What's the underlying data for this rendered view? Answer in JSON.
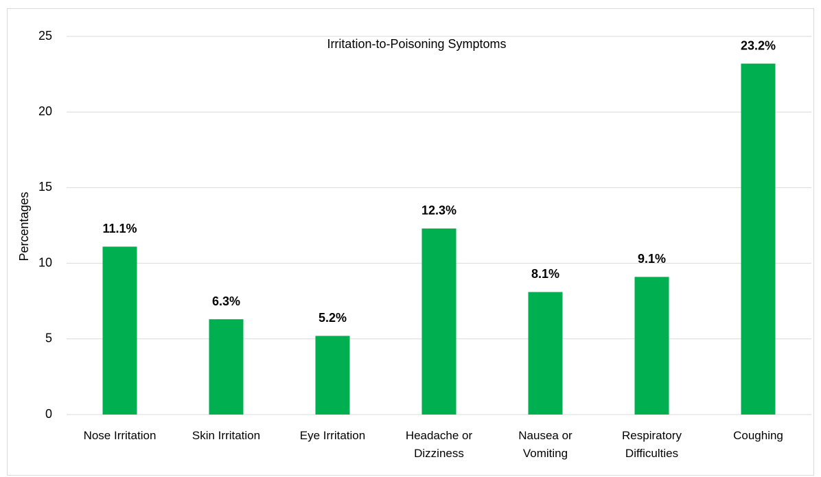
{
  "chart_data": {
    "type": "bar",
    "title": "Irritation-to-Poisoning Symptoms",
    "ylabel": "Percentages",
    "categories": [
      "Nose Irritation",
      "Skin Irritation",
      "Eye Irritation",
      "Headache or Dizziness",
      "Nausea or Vomiting",
      "Respiratory Difficulties",
      "Coughing"
    ],
    "values": [
      11.1,
      6.3,
      5.2,
      12.3,
      8.1,
      9.1,
      23.2
    ],
    "value_labels": [
      "11.1%",
      "6.3%",
      "5.2%",
      "12.3%",
      "8.1%",
      "9.1%",
      "23.2%"
    ],
    "color": "#00b050",
    "ylim": [
      0,
      25
    ],
    "yticks": [
      0,
      5,
      10,
      15,
      20,
      25
    ],
    "grid": true
  }
}
